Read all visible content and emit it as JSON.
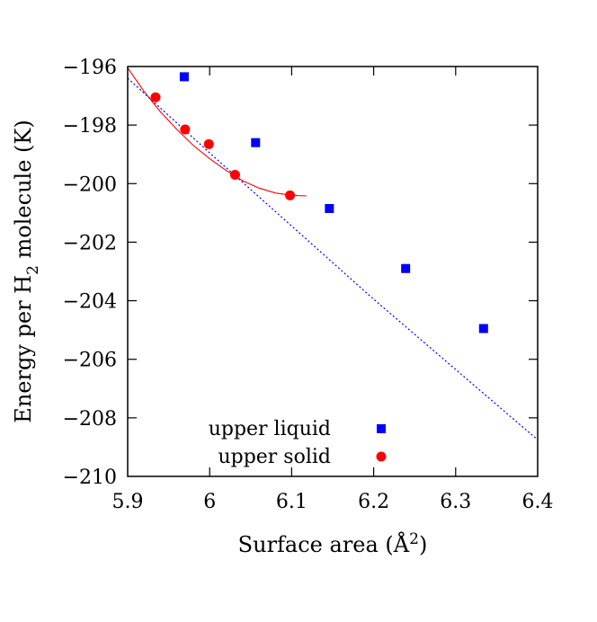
{
  "chart_data": {
    "type": "scatter",
    "xlabel": "Surface area (Å²)",
    "ylabel": "Energy per H₂ molecule (K)",
    "xlim": [
      5.9,
      6.4
    ],
    "ylim": [
      -210,
      -196
    ],
    "x_ticks": [
      "5.9",
      "6",
      "6.1",
      "6.2",
      "6.3",
      "6.4"
    ],
    "y_ticks": [
      "−196",
      "−198",
      "−200",
      "−202",
      "−204",
      "−206",
      "−208",
      "−210"
    ],
    "legend_position": "bottom-center",
    "series": [
      {
        "name": "upper liquid",
        "marker": "square",
        "color": "#0000ff",
        "points": [
          {
            "x": 5.969,
            "y": -196.35
          },
          {
            "x": 6.056,
            "y": -198.6
          },
          {
            "x": 6.146,
            "y": -200.85
          },
          {
            "x": 6.239,
            "y": -202.9
          },
          {
            "x": 6.334,
            "y": -204.95
          }
        ]
      },
      {
        "name": "upper solid",
        "marker": "circle",
        "color": "#ff0000",
        "points": [
          {
            "x": 5.934,
            "y": -197.05
          },
          {
            "x": 5.97,
            "y": -198.15
          },
          {
            "x": 5.999,
            "y": -198.65
          },
          {
            "x": 6.031,
            "y": -199.7
          },
          {
            "x": 6.098,
            "y": -200.4
          }
        ]
      }
    ],
    "fit_curves": [
      {
        "style": "solid",
        "color": "#ff0000",
        "points": [
          {
            "x": 5.9,
            "y": -196.05
          },
          {
            "x": 5.92,
            "y": -196.85
          },
          {
            "x": 5.94,
            "y": -197.55
          },
          {
            "x": 5.96,
            "y": -198.15
          },
          {
            "x": 5.98,
            "y": -198.7
          },
          {
            "x": 6.0,
            "y": -199.15
          },
          {
            "x": 6.02,
            "y": -199.55
          },
          {
            "x": 6.04,
            "y": -199.9
          },
          {
            "x": 6.06,
            "y": -200.15
          },
          {
            "x": 6.08,
            "y": -200.32
          },
          {
            "x": 6.1,
            "y": -200.4
          },
          {
            "x": 6.118,
            "y": -200.42
          }
        ]
      },
      {
        "style": "dotted",
        "color": "#0000ff",
        "points": [
          {
            "x": 5.9,
            "y": -196.4
          },
          {
            "x": 6.0,
            "y": -198.95
          },
          {
            "x": 6.1,
            "y": -201.45
          },
          {
            "x": 6.2,
            "y": -203.95
          },
          {
            "x": 6.3,
            "y": -206.35
          },
          {
            "x": 6.4,
            "y": -208.75
          }
        ]
      }
    ]
  }
}
